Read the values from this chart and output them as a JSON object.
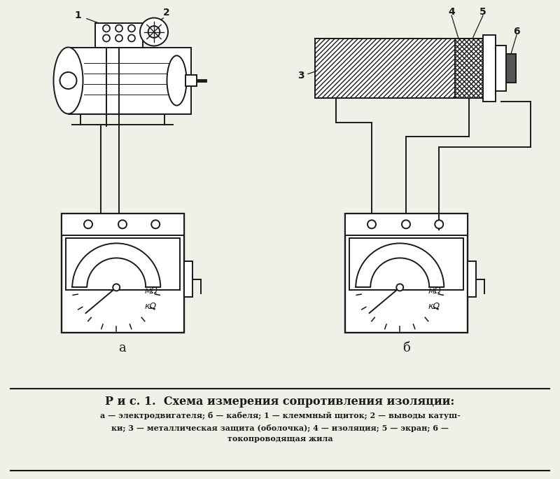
{
  "title": "Р и с. 1.  Схема измерения сопротивления изоляции:",
  "caption_line1": "а — электродвигателя; б — кабеля; 1 — клеммный щиток; 2 — выводы катуш-",
  "caption_line2": "ки; 3 — металлическая защита (оболочка); 4 — изоляция; 5 — экран; 6 —",
  "caption_line3": "токопроводящая жила",
  "label_a": "а",
  "label_b": "б",
  "bg_color": "#f0efe8",
  "line_color": "#1a1a1a",
  "white": "#ffffff"
}
